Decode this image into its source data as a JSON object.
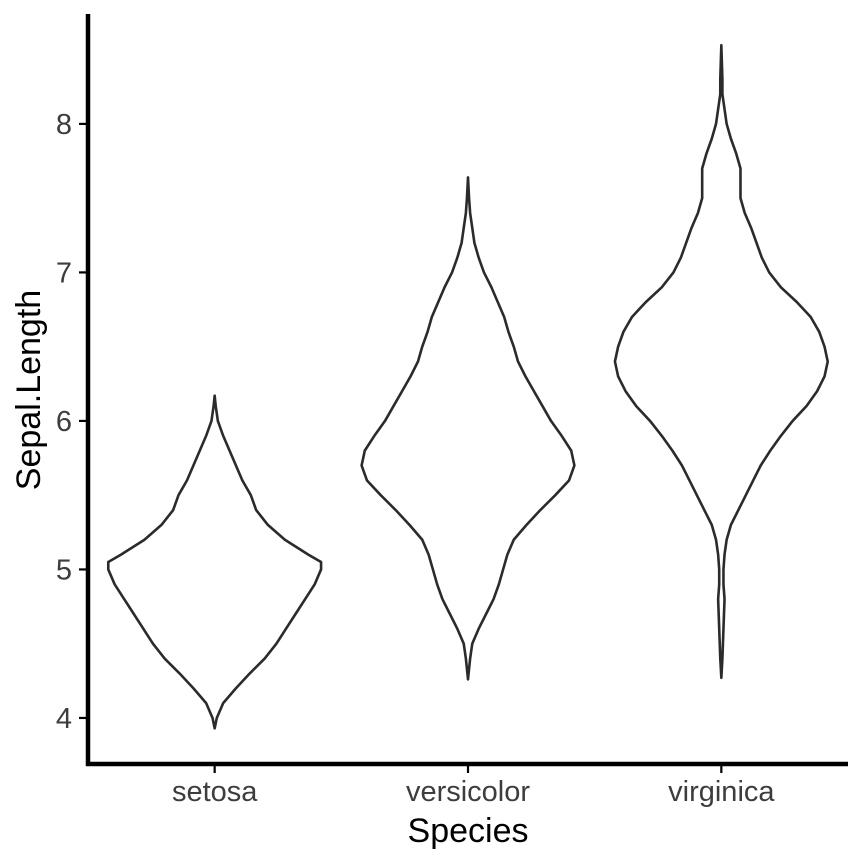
{
  "chart_data": {
    "type": "violin",
    "title": "",
    "xlabel": "Species",
    "ylabel": "Sepal.Length",
    "categories": [
      "setosa",
      "versicolor",
      "virginica"
    ],
    "y_ticks": [
      4,
      5,
      6,
      7,
      8
    ],
    "y_tick_labels": [
      "4",
      "5",
      "6",
      "7",
      "8"
    ],
    "ylim": [
      3.69,
      8.74
    ],
    "grid": false,
    "legend": "none",
    "colors": {
      "outline": "#2b2b2b",
      "fill": "#ffffff",
      "axis": "#000000",
      "tick_text": "#3d3d3d"
    },
    "series": [
      {
        "category": "setosa",
        "min": 4.3,
        "max": 5.8,
        "density_profile": [
          [
            3.93,
            0.0
          ],
          [
            4.0,
            0.02
          ],
          [
            4.1,
            0.08
          ],
          [
            4.2,
            0.2
          ],
          [
            4.3,
            0.33
          ],
          [
            4.4,
            0.47
          ],
          [
            4.5,
            0.58
          ],
          [
            4.6,
            0.67
          ],
          [
            4.7,
            0.76
          ],
          [
            4.8,
            0.85
          ],
          [
            4.9,
            0.94
          ],
          [
            5.0,
            1.0
          ],
          [
            5.05,
            1.0
          ],
          [
            5.1,
            0.88
          ],
          [
            5.2,
            0.66
          ],
          [
            5.3,
            0.5
          ],
          [
            5.4,
            0.39
          ],
          [
            5.5,
            0.34
          ],
          [
            5.6,
            0.26
          ],
          [
            5.7,
            0.2
          ],
          [
            5.8,
            0.14
          ],
          [
            5.9,
            0.08
          ],
          [
            6.0,
            0.03
          ],
          [
            6.1,
            0.01
          ],
          [
            6.17,
            0.0
          ]
        ]
      },
      {
        "category": "versicolor",
        "min": 4.9,
        "max": 7.0,
        "density_profile": [
          [
            4.26,
            0.0
          ],
          [
            4.4,
            0.02
          ],
          [
            4.5,
            0.04
          ],
          [
            4.6,
            0.1
          ],
          [
            4.7,
            0.17
          ],
          [
            4.8,
            0.24
          ],
          [
            4.9,
            0.29
          ],
          [
            5.0,
            0.33
          ],
          [
            5.1,
            0.37
          ],
          [
            5.2,
            0.43
          ],
          [
            5.3,
            0.55
          ],
          [
            5.4,
            0.68
          ],
          [
            5.5,
            0.82
          ],
          [
            5.6,
            0.95
          ],
          [
            5.7,
            1.0
          ],
          [
            5.8,
            0.97
          ],
          [
            5.9,
            0.88
          ],
          [
            6.0,
            0.78
          ],
          [
            6.1,
            0.7
          ],
          [
            6.2,
            0.62
          ],
          [
            6.3,
            0.54
          ],
          [
            6.4,
            0.47
          ],
          [
            6.5,
            0.43
          ],
          [
            6.6,
            0.38
          ],
          [
            6.7,
            0.34
          ],
          [
            6.8,
            0.28
          ],
          [
            6.9,
            0.22
          ],
          [
            7.0,
            0.15
          ],
          [
            7.1,
            0.1
          ],
          [
            7.2,
            0.06
          ],
          [
            7.3,
            0.04
          ],
          [
            7.4,
            0.02
          ],
          [
            7.5,
            0.01
          ],
          [
            7.64,
            0.0
          ]
        ]
      },
      {
        "category": "virginica",
        "min": 4.9,
        "max": 7.9,
        "density_profile": [
          [
            4.27,
            0.0
          ],
          [
            4.4,
            0.01
          ],
          [
            4.6,
            0.02
          ],
          [
            4.8,
            0.03
          ],
          [
            4.9,
            0.02
          ],
          [
            5.0,
            0.02
          ],
          [
            5.1,
            0.03
          ],
          [
            5.2,
            0.05
          ],
          [
            5.3,
            0.09
          ],
          [
            5.4,
            0.16
          ],
          [
            5.5,
            0.23
          ],
          [
            5.6,
            0.3
          ],
          [
            5.7,
            0.37
          ],
          [
            5.8,
            0.46
          ],
          [
            5.9,
            0.56
          ],
          [
            6.0,
            0.67
          ],
          [
            6.1,
            0.8
          ],
          [
            6.2,
            0.9
          ],
          [
            6.3,
            0.97
          ],
          [
            6.4,
            1.0
          ],
          [
            6.5,
            0.97
          ],
          [
            6.6,
            0.92
          ],
          [
            6.7,
            0.84
          ],
          [
            6.8,
            0.71
          ],
          [
            6.9,
            0.56
          ],
          [
            7.0,
            0.45
          ],
          [
            7.1,
            0.38
          ],
          [
            7.2,
            0.33
          ],
          [
            7.3,
            0.28
          ],
          [
            7.4,
            0.22
          ],
          [
            7.5,
            0.18
          ],
          [
            7.6,
            0.18
          ],
          [
            7.7,
            0.18
          ],
          [
            7.8,
            0.14
          ],
          [
            7.9,
            0.09
          ],
          [
            8.0,
            0.05
          ],
          [
            8.1,
            0.03
          ],
          [
            8.2,
            0.01
          ],
          [
            8.3,
            0.01
          ],
          [
            8.53,
            0.0
          ]
        ]
      }
    ]
  }
}
